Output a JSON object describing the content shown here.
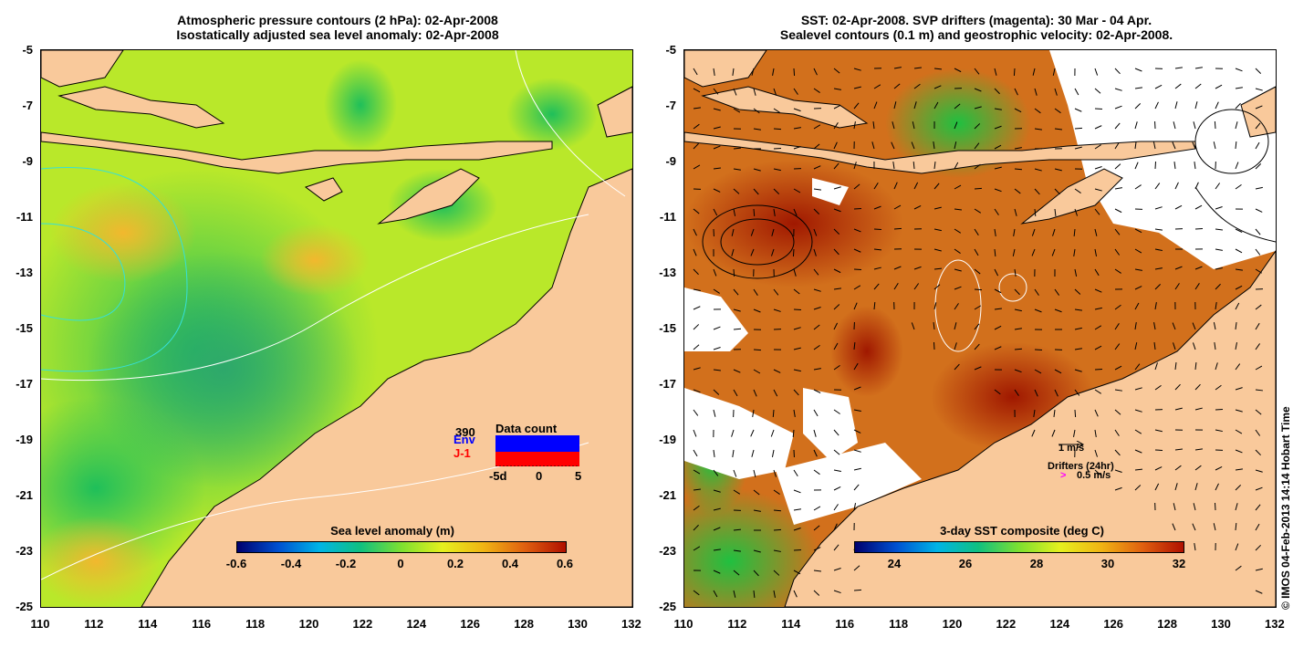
{
  "left_panel": {
    "title_line1": "Atmospheric pressure contours (2 hPa): 02-Apr-2008",
    "title_line2": "Isostatically adjusted sea level anomaly: 02-Apr-2008",
    "colorbar_title": "Sea level anomaly (m)",
    "colorbar_ticks": [
      "-0.6",
      "-0.4",
      "-0.2",
      "0",
      "0.2",
      "0.4",
      "0.6"
    ],
    "inset": {
      "title": "Data count",
      "count": "390",
      "series1": "Env",
      "series2": "J-1",
      "xticks": [
        "-5d",
        "0",
        "5"
      ],
      "series1_color": "#0000ff",
      "series2_color": "#ff0000"
    }
  },
  "right_panel": {
    "title_line1": "SST: 02-Apr-2008. SVP drifters (magenta): 30 Mar - 04 Apr.",
    "title_line2": "Sealevel contours (0.1 m) and geostrophic velocity: 02-Apr-2008.",
    "colorbar_title": "3-day SST composite (deg C)",
    "colorbar_ticks": [
      "24",
      "26",
      "28",
      "30",
      "32"
    ],
    "velocity_label": "1 m/s",
    "drifters_label": "Drifters (24hr)",
    "drifters_speed": "0.5 m/s",
    "drifter_color": "#ff00ff"
  },
  "axes": {
    "y_ticks": [
      "-5",
      "-7",
      "-9",
      "-11",
      "-13",
      "-15",
      "-17",
      "-19",
      "-21",
      "-23",
      "-25"
    ],
    "x_ticks": [
      "110",
      "112",
      "114",
      "116",
      "118",
      "120",
      "122",
      "124",
      "126",
      "128",
      "130",
      "132"
    ]
  },
  "colors": {
    "land": "#f9c99b",
    "sea_anomaly_base": "#b4e61e",
    "sst_base": "#d2691e"
  },
  "copyright": "© IMOS 04-Feb-2013 14:14 Hobart Time"
}
